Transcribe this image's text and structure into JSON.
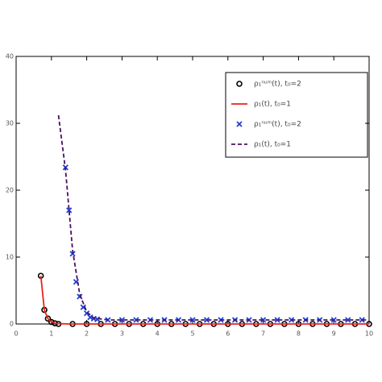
{
  "chart_data": {
    "type": "line",
    "xlim": [
      0,
      10
    ],
    "xticks": [
      0,
      1,
      2,
      3,
      4,
      5,
      6,
      7,
      8,
      9,
      10
    ],
    "ylim": [
      0,
      40
    ],
    "yticks": [
      0,
      10,
      20,
      30,
      40
    ],
    "series": [
      {
        "name": "ρ₁ⁿᵘᵐ(t), t₀=2",
        "style": "circle",
        "color": "#000000",
        "x": [
          0.7,
          0.8,
          0.9,
          1.0,
          1.1,
          1.2,
          1.6,
          2,
          2.4,
          2.8,
          3.2,
          3.6,
          4,
          4.4,
          4.8,
          5.2,
          5.6,
          6,
          6.4,
          6.8,
          7.2,
          7.6,
          8,
          8.4,
          8.8,
          9.2,
          9.6,
          10
        ],
        "values": [
          7.2,
          2.1,
          0.8,
          0.3,
          0.1,
          0,
          0,
          0,
          0,
          0,
          0,
          0,
          0,
          0,
          0,
          0,
          0,
          0,
          0,
          0,
          0,
          0,
          0,
          0,
          0,
          0,
          0,
          0
        ]
      },
      {
        "name": "ρ₁(t), t₀=1",
        "style": "solid",
        "color": "#e8231c",
        "x": [
          0.7,
          0.8,
          0.9,
          1.0,
          1.1,
          1.2,
          1.5,
          2,
          10
        ],
        "values": [
          7.2,
          2.1,
          0.8,
          0.3,
          0.1,
          0.05,
          0,
          0,
          0
        ]
      },
      {
        "name": "ρ₁ⁿᵘᵐ(t), t₀=2",
        "style": "cross",
        "color": "#1f3fd6",
        "x": [
          1.4,
          1.5,
          1.6,
          1.7,
          1.8,
          1.9,
          2.0,
          2.1,
          2.2,
          2.3,
          2.6,
          3,
          3.4,
          3.8,
          4.2,
          4.6,
          5,
          5.4,
          5.8,
          6.2,
          6.6,
          7,
          7.4,
          7.8,
          8.2,
          8.6,
          9,
          9.4,
          9.8
        ],
        "values": [
          23.4,
          17,
          10.5,
          6.3,
          4.1,
          2.5,
          1.6,
          1.0,
          0.8,
          0.7,
          0.6,
          0.6,
          0.6,
          0.6,
          0.6,
          0.6,
          0.6,
          0.6,
          0.6,
          0.6,
          0.6,
          0.6,
          0.6,
          0.6,
          0.6,
          0.6,
          0.6,
          0.6,
          0.6
        ]
      },
      {
        "name": "ρ₁(t), t₀=1",
        "style": "dashed",
        "color": "#4a1060",
        "x": [
          1.2,
          1.4,
          1.6,
          1.8,
          2.0,
          2.2,
          2.6,
          10
        ],
        "values": [
          31.2,
          23,
          11,
          4.5,
          1.8,
          0.9,
          0.6,
          0.6
        ]
      }
    ]
  }
}
